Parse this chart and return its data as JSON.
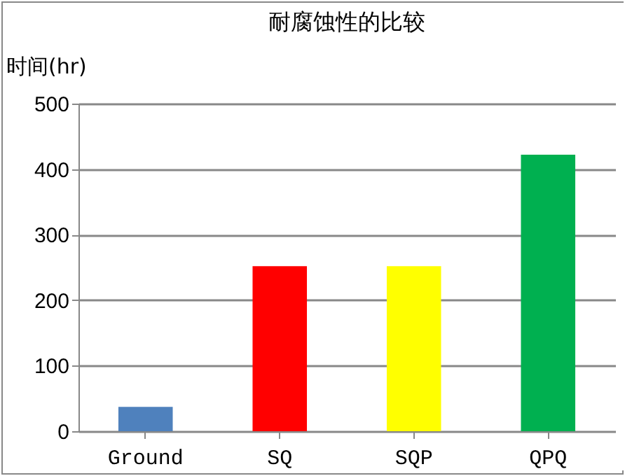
{
  "chart_data": {
    "type": "bar",
    "title": "耐腐蚀性的比较",
    "ylabel": "时间(hr)",
    "categories": [
      "Ground",
      "SQ",
      "SQP",
      "QPQ"
    ],
    "values": [
      37,
      252,
      252,
      422
    ],
    "colors": [
      "#4f81bd",
      "#ff0000",
      "#ffff00",
      "#00b050"
    ],
    "ylim": [
      0,
      500
    ],
    "yticks": [
      0,
      100,
      200,
      300,
      400,
      500
    ],
    "grid": "y"
  }
}
